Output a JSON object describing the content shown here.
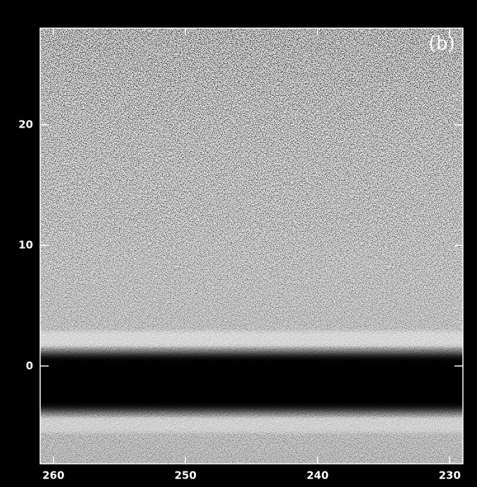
{
  "chart_data": {
    "type": "image",
    "annotation": "(b)",
    "xlim": [
      261,
      229
    ],
    "ylim": [
      -8.1,
      28
    ],
    "xticks": [
      260,
      250,
      240,
      230
    ],
    "yticks": [
      0,
      10,
      20
    ]
  }
}
